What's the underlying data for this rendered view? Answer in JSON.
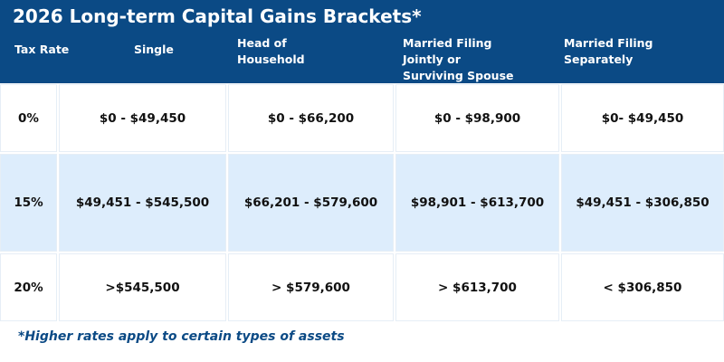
{
  "header": {
    "title": "2026 Long-term Capital Gains Brackets*"
  },
  "table": {
    "columns": [
      [
        "Tax Rate"
      ],
      [
        "Single"
      ],
      [
        "Head of",
        "Household"
      ],
      [
        "Married Filing",
        "Jointly or",
        "Surviving Spouse"
      ],
      [
        "Married Filing",
        "Separately"
      ]
    ],
    "rows": [
      [
        "0%",
        "$0 - $49,450",
        "$0 - $66,200",
        "$0 - $98,900",
        "$0- $49,450"
      ],
      [
        "15%",
        "$49,451 - $545,500",
        "$66,201 - $579,600",
        "$98,901 - $613,700",
        "$49,451 - $306,850"
      ],
      [
        "20%",
        ">$545,500",
        "> $579,600",
        "> $613,700",
        "< $306,850"
      ]
    ]
  },
  "footnote": "*Higher rates apply to certain types of assets"
}
